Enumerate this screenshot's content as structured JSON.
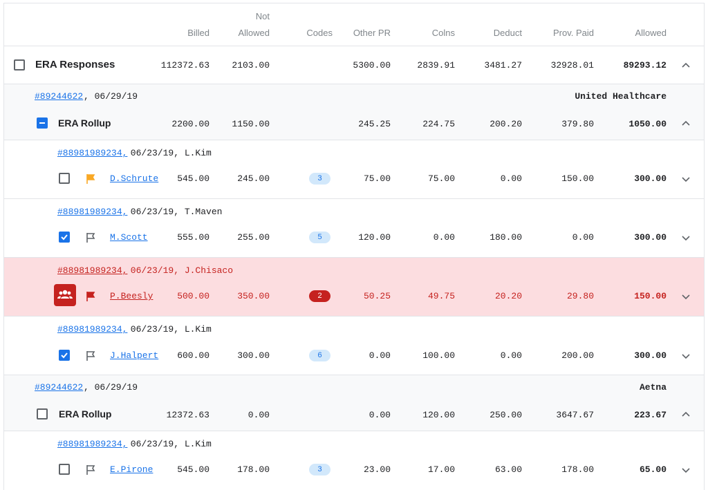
{
  "columns": {
    "billed": "Billed",
    "not_allowed_line1": "Not",
    "not_allowed_line2": "Allowed",
    "codes": "Codes",
    "other_pr": "Other PR",
    "coins": "Colns",
    "deduct": "Deduct",
    "prov_paid": "Prov. Paid",
    "allowed": "Allowed"
  },
  "summary": {
    "label": "ERA Responses",
    "billed": "112372.63",
    "not_allowed": "2103.00",
    "other_pr": "5300.00",
    "coins": "2839.91",
    "deduct": "3481.27",
    "prov_paid": "32928.01",
    "allowed": "89293.12"
  },
  "groups": [
    {
      "id": "#89244622",
      "date": ", 06/29/19",
      "payer": "United Healthcare",
      "label": "ERA Rollup",
      "billed": "2200.00",
      "not_allowed": "1150.00",
      "other_pr": "245.25",
      "coins": "224.75",
      "deduct": "200.20",
      "prov_paid": "379.80",
      "allowed": "1050.00",
      "rows": [
        {
          "claim": "#88981989234,",
          "meta": " 06/23/19, L.Kim",
          "patient": "D.Schrute",
          "billed": "545.00",
          "not_allowed": "245.00",
          "codes": "3",
          "other_pr": "75.00",
          "coins": "75.00",
          "deduct": "0.00",
          "prov_paid": "150.00",
          "allowed": "300.00"
        },
        {
          "claim": "#88981989234,",
          "meta": " 06/23/19, T.Maven",
          "patient": "M.Scott",
          "billed": "555.00",
          "not_allowed": "255.00",
          "codes": "5",
          "other_pr": "120.00",
          "coins": "0.00",
          "deduct": "180.00",
          "prov_paid": "0.00",
          "allowed": "300.00"
        },
        {
          "claim": "#88981989234,",
          "meta": " 06/23/19, J.Chisaco",
          "patient": "P.Beesly",
          "billed": "500.00",
          "not_allowed": "350.00",
          "codes": "2",
          "other_pr": "50.25",
          "coins": "49.75",
          "deduct": "20.20",
          "prov_paid": "29.80",
          "allowed": "150.00"
        },
        {
          "claim": "#88981989234,",
          "meta": " 06/23/19, L.Kim",
          "patient": "J.Halpert",
          "billed": "600.00",
          "not_allowed": "300.00",
          "codes": "6",
          "other_pr": "0.00",
          "coins": "100.00",
          "deduct": "0.00",
          "prov_paid": "200.00",
          "allowed": "300.00"
        }
      ]
    },
    {
      "id": "#89244622",
      "date": ", 06/29/19",
      "payer": "Aetna",
      "label": "ERA Rollup",
      "billed": "12372.63",
      "not_allowed": "0.00",
      "other_pr": "0.00",
      "coins": "120.00",
      "deduct": "250.00",
      "prov_paid": "3647.67",
      "allowed": "223.67",
      "rows": [
        {
          "claim": "#88981989234,",
          "meta": " 06/23/19, L.Kim",
          "patient": "E.Pirone",
          "billed": "545.00",
          "not_allowed": "178.00",
          "codes": "3",
          "other_pr": "23.00",
          "coins": "17.00",
          "deduct": "63.00",
          "prov_paid": "178.00",
          "allowed": "65.00"
        }
      ]
    }
  ],
  "icons": {
    "flag_orange": "flag-filled-icon",
    "flag_outline": "flag-outline-icon",
    "flag_red": "flag-filled-icon",
    "group_warning": "people-icon",
    "chevron_up": "chevron-up-icon",
    "chevron_down": "chevron-down-icon"
  },
  "colors": {
    "link": "#1a73e8",
    "error_bg": "#fcdde0",
    "error": "#c5221f",
    "flag_orange": "#f9a825",
    "badge_bg": "#d2e8fb",
    "group_bg": "#f8f9fa"
  }
}
